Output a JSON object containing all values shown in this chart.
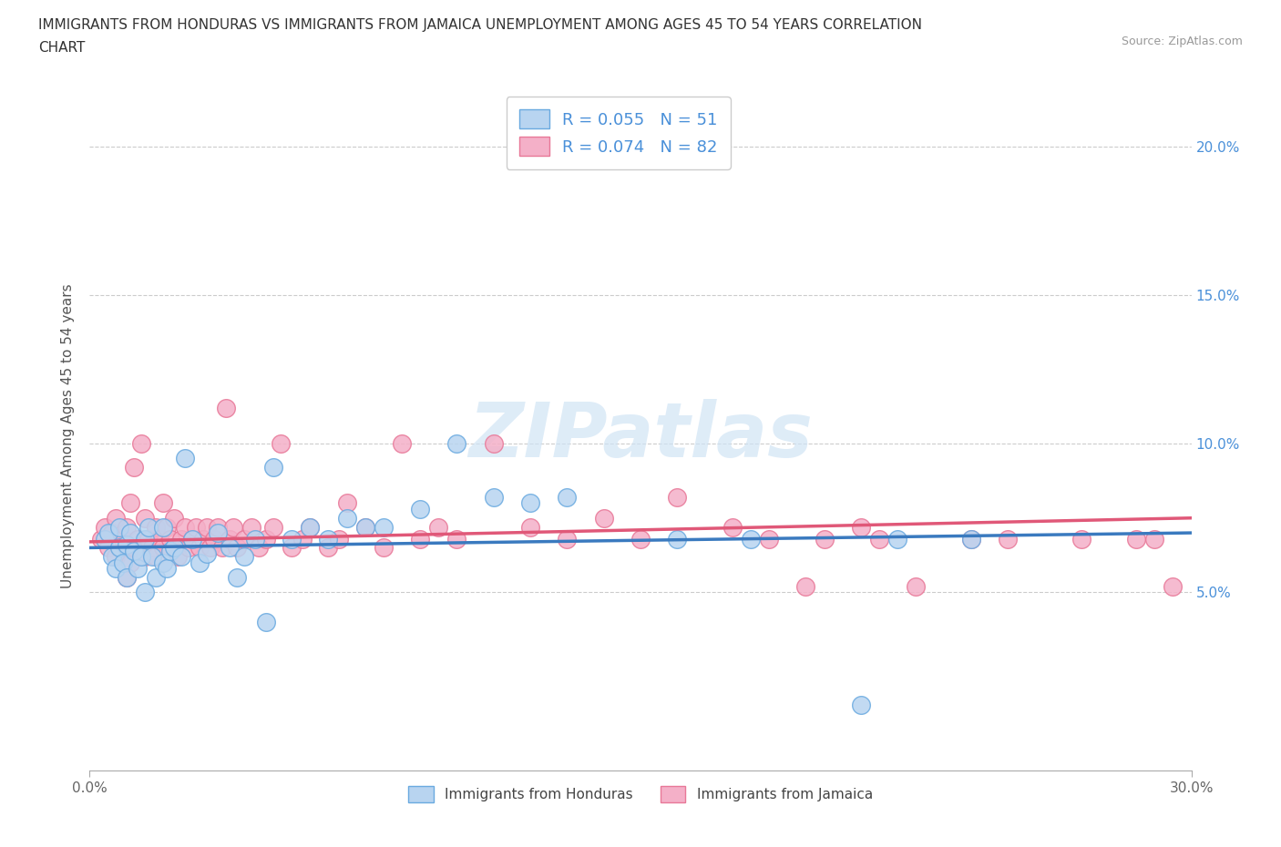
{
  "title_line1": "IMMIGRANTS FROM HONDURAS VS IMMIGRANTS FROM JAMAICA UNEMPLOYMENT AMONG AGES 45 TO 54 YEARS CORRELATION",
  "title_line2": "CHART",
  "source_text": "Source: ZipAtlas.com",
  "ylabel": "Unemployment Among Ages 45 to 54 years",
  "xlim": [
    0.0,
    0.3
  ],
  "ylim": [
    -0.01,
    0.215
  ],
  "xticks": [
    0.0,
    0.3
  ],
  "xticklabels": [
    "0.0%",
    "30.0%"
  ],
  "ytick_vals": [
    0.05,
    0.1,
    0.15,
    0.2
  ],
  "ytick_labels": [
    "5.0%",
    "10.0%",
    "15.0%",
    "20.0%"
  ],
  "watermark_text": "ZIPatlas",
  "R_honduras": 0.055,
  "N_honduras": 51,
  "R_jamaica": 0.074,
  "N_jamaica": 82,
  "color_honduras_fill": "#b8d4f0",
  "color_jamaica_fill": "#f4b0c8",
  "color_honduras_edge": "#6aaae0",
  "color_jamaica_edge": "#e87898",
  "line_color_honduras": "#3a7abf",
  "line_color_jamaica": "#e05878",
  "label_honduras": "Immigrants from Honduras",
  "label_jamaica": "Immigrants from Jamaica",
  "tick_label_color": "#4a90d9",
  "hx": [
    0.004,
    0.005,
    0.006,
    0.007,
    0.008,
    0.008,
    0.009,
    0.01,
    0.01,
    0.011,
    0.012,
    0.013,
    0.014,
    0.015,
    0.015,
    0.016,
    0.017,
    0.018,
    0.02,
    0.02,
    0.021,
    0.022,
    0.023,
    0.025,
    0.026,
    0.028,
    0.03,
    0.032,
    0.035,
    0.038,
    0.04,
    0.042,
    0.045,
    0.048,
    0.05,
    0.055,
    0.06,
    0.065,
    0.07,
    0.075,
    0.08,
    0.09,
    0.1,
    0.11,
    0.12,
    0.13,
    0.16,
    0.18,
    0.21,
    0.22,
    0.24
  ],
  "hy": [
    0.068,
    0.07,
    0.062,
    0.058,
    0.065,
    0.072,
    0.06,
    0.055,
    0.066,
    0.07,
    0.064,
    0.058,
    0.062,
    0.05,
    0.068,
    0.072,
    0.062,
    0.055,
    0.06,
    0.072,
    0.058,
    0.064,
    0.065,
    0.062,
    0.095,
    0.068,
    0.06,
    0.063,
    0.07,
    0.065,
    0.055,
    0.062,
    0.068,
    0.04,
    0.092,
    0.068,
    0.072,
    0.068,
    0.075,
    0.072,
    0.072,
    0.078,
    0.1,
    0.082,
    0.08,
    0.082,
    0.068,
    0.068,
    0.012,
    0.068,
    0.068
  ],
  "jx": [
    0.003,
    0.004,
    0.005,
    0.006,
    0.007,
    0.007,
    0.008,
    0.009,
    0.01,
    0.01,
    0.011,
    0.011,
    0.012,
    0.012,
    0.013,
    0.014,
    0.015,
    0.015,
    0.016,
    0.017,
    0.018,
    0.018,
    0.019,
    0.02,
    0.02,
    0.021,
    0.022,
    0.023,
    0.024,
    0.025,
    0.026,
    0.027,
    0.028,
    0.029,
    0.03,
    0.031,
    0.032,
    0.033,
    0.034,
    0.035,
    0.036,
    0.037,
    0.038,
    0.039,
    0.04,
    0.042,
    0.044,
    0.046,
    0.048,
    0.05,
    0.052,
    0.055,
    0.058,
    0.06,
    0.065,
    0.068,
    0.07,
    0.075,
    0.08,
    0.085,
    0.09,
    0.095,
    0.1,
    0.11,
    0.12,
    0.13,
    0.14,
    0.15,
    0.16,
    0.175,
    0.185,
    0.195,
    0.2,
    0.21,
    0.215,
    0.225,
    0.24,
    0.25,
    0.27,
    0.285,
    0.29,
    0.295
  ],
  "jy": [
    0.068,
    0.072,
    0.065,
    0.07,
    0.062,
    0.075,
    0.065,
    0.068,
    0.055,
    0.072,
    0.06,
    0.08,
    0.065,
    0.092,
    0.068,
    0.1,
    0.062,
    0.075,
    0.068,
    0.065,
    0.072,
    0.062,
    0.068,
    0.065,
    0.08,
    0.072,
    0.068,
    0.075,
    0.062,
    0.068,
    0.072,
    0.065,
    0.068,
    0.072,
    0.065,
    0.068,
    0.072,
    0.065,
    0.068,
    0.072,
    0.065,
    0.112,
    0.068,
    0.072,
    0.065,
    0.068,
    0.072,
    0.065,
    0.068,
    0.072,
    0.1,
    0.065,
    0.068,
    0.072,
    0.065,
    0.068,
    0.08,
    0.072,
    0.065,
    0.1,
    0.068,
    0.072,
    0.068,
    0.1,
    0.072,
    0.068,
    0.075,
    0.068,
    0.082,
    0.072,
    0.068,
    0.052,
    0.068,
    0.072,
    0.068,
    0.052,
    0.068,
    0.068,
    0.068,
    0.068,
    0.068,
    0.052
  ]
}
